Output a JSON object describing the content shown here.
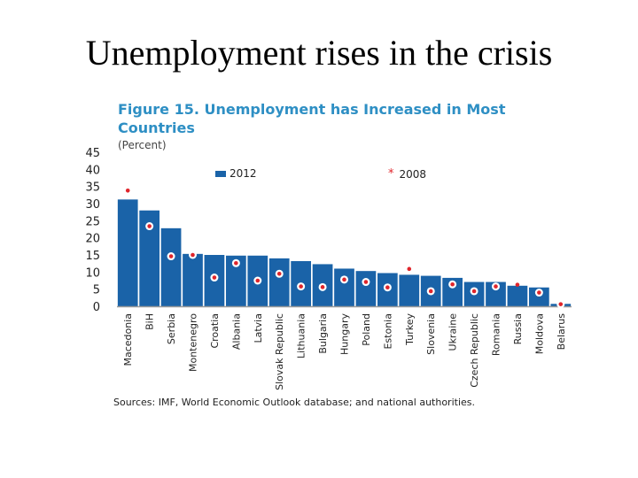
{
  "slide": {
    "title": "Unemployment rises in the crisis"
  },
  "figure": {
    "title": "Figure 15. Unemployment has Increased in Most Countries",
    "unit": "(Percent)",
    "source": "Sources: IMF, World Economic Outlook database; and national authorities."
  },
  "colors": {
    "bar": "#1a63a8",
    "marker": "#e0252b",
    "title": "#2e8fc4"
  },
  "chart_data": {
    "type": "bar",
    "categories": [
      "Macedonia",
      "BiH",
      "Serbia",
      "Montenegro",
      "Croatia",
      "Albania",
      "Latvia",
      "Slovak Republic",
      "Lithuania",
      "Bulgaria",
      "Hungary",
      "Poland",
      "Estonia",
      "Turkey",
      "Slovenia",
      "Ukraine",
      "Czech Republic",
      "Romania",
      "Russia",
      "Moldova",
      "Belarus"
    ],
    "series": [
      {
        "name": "2012",
        "values": [
          31.2,
          28,
          22.8,
          15.3,
          15,
          14.8,
          14.8,
          14,
          13.2,
          12.3,
          11,
          10.3,
          9.7,
          9.2,
          8.9,
          8.3,
          7.1,
          7.1,
          6,
          5.5,
          0.7
        ]
      },
      {
        "name": "2008",
        "values": [
          33.8,
          23.4,
          14.6,
          15,
          8.4,
          12.6,
          7.5,
          9.5,
          5.8,
          5.6,
          7.8,
          7.1,
          5.5,
          10.9,
          4.4,
          6.4,
          4.4,
          5.8,
          6.3,
          4,
          0.6
        ]
      }
    ],
    "ylim": [
      0,
      45
    ],
    "yticks": [
      "0",
      "5",
      "10",
      "15",
      "20",
      "25",
      "30",
      "35",
      "40",
      "45"
    ],
    "xlabel": "",
    "ylabel": "",
    "legend": [
      "2012",
      "2008"
    ]
  }
}
